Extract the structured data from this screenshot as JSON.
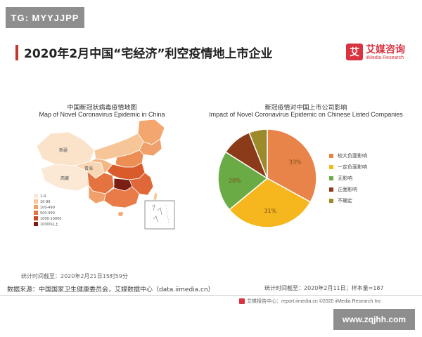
{
  "watermark_top": "TG: MYYJJPP",
  "watermark_bottom": "www.zqjhh.com",
  "title": "2020年2月中国“宅经济”利空疫情地上市企业",
  "brand": {
    "mark": "艾",
    "name": "艾媒咨询",
    "sub": "iiMedia Research"
  },
  "map": {
    "title_cn": "中国新冠状病毒疫情地图",
    "title_en": "Map of Novel Coronavirus Epidemic in China",
    "legend": [
      "1-9",
      "10-99",
      "100-499",
      "500-999",
      "1000-10000",
      "10000以上"
    ],
    "labels": [
      "新疆",
      "西藏",
      "青海"
    ]
  },
  "chart_data": {
    "type": "pie",
    "title": "新冠疫情对中国上市公司影响",
    "subtitle": "Impact of Novel Coronavirus Epidemic on Chinese Listed Companies",
    "slices": [
      {
        "name": "较大负面影响",
        "value": 33,
        "label": "33%",
        "color": "#e8834a"
      },
      {
        "name": "一定负面影响",
        "value": 31,
        "label": "31%",
        "color": "#f5b71d"
      },
      {
        "name": "无影响",
        "value": 20,
        "label": "20%",
        "color": "#6aab45"
      },
      {
        "name": "正面影响",
        "value": 10,
        "label": "",
        "color": "#8b3a1a"
      },
      {
        "name": "不确定",
        "value": 6,
        "label": "",
        "color": "#9c8a2b"
      }
    ]
  },
  "note_left": "统计时间截至：2020年2月21日15时59分",
  "note_right": "统计时间截至：2020年2月11日；样本量=187",
  "source": "数据来源：中国国家卫生健康委员会，艾媒数据中心（data.iimedia.cn）",
  "footer": "艾媒报告中心：report.iimedia.cn  ©2020  iiMedia Research Inc"
}
